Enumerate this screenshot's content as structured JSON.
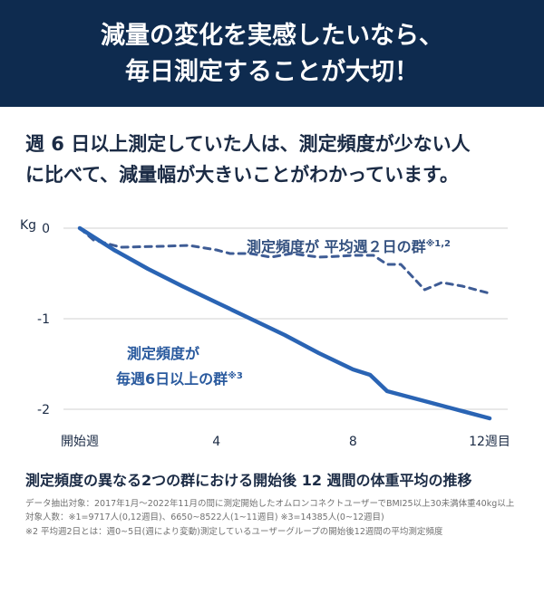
{
  "header": {
    "line1": "減量の変化を実感したいなら、",
    "line2": "毎日測定することが大切！"
  },
  "subhead": {
    "line1": "週 6 日以上測定していた人は、測定頻度が少ない人",
    "line2": "に比べて、減量幅が大きいことがわかっています。"
  },
  "chart_data": {
    "type": "line",
    "ylabel": "Kg",
    "ylim": [
      -2.1,
      0
    ],
    "yticks": [
      0,
      -1,
      -2
    ],
    "xlim": [
      0,
      12
    ],
    "xticks": [
      {
        "value": 0,
        "label": "開始週"
      },
      {
        "value": 4,
        "label": "4"
      },
      {
        "value": 8,
        "label": "8"
      },
      {
        "value": 12,
        "label": "12週目"
      }
    ],
    "grid": true,
    "series": [
      {
        "name": "測定頻度が 平均週２日の群",
        "name_sup": "※1,2",
        "style": "dashed",
        "color": "#3e5c95",
        "x": [
          0,
          0.4,
          1.2,
          2.4,
          3.2,
          4.0,
          4.4,
          5.0,
          5.6,
          6.2,
          7.0,
          7.6,
          8.0,
          8.6,
          9.0,
          9.4,
          10.1,
          10.6,
          11.2,
          12.0
        ],
        "y": [
          0,
          -0.13,
          -0.21,
          -0.2,
          -0.19,
          -0.24,
          -0.28,
          -0.28,
          -0.32,
          -0.28,
          -0.32,
          -0.31,
          -0.3,
          -0.3,
          -0.4,
          -0.4,
          -0.68,
          -0.6,
          -0.64,
          -0.72
        ]
      },
      {
        "name_line1": "測定頻度が",
        "name_line2": "毎週6日以上の群",
        "name_sup": "※3",
        "style": "solid",
        "color": "#2a64b4",
        "x": [
          0,
          1,
          2,
          3,
          4,
          5,
          6,
          7,
          8,
          8.5,
          9,
          10,
          11,
          12
        ],
        "y": [
          0,
          -0.24,
          -0.45,
          -0.64,
          -0.82,
          -1.0,
          -1.18,
          -1.38,
          -1.56,
          -1.62,
          -1.8,
          -1.9,
          -2.0,
          -2.1
        ]
      }
    ]
  },
  "caption": {
    "title": "測定頻度の異なる2つの群における開始後 12 週間の体重平均の推移",
    "note1": "データ抽出対象：2017年1月～2022年11月の間に測定開始したオムロンコネクトユーザーでBMI25以上30未満体重40kg以上",
    "note2": "対象人数：※1=9717人(0,12週目)、6650~8522人(1~11週目) ※3=14385人(0~12週目)",
    "note3": "※2 平均週2日とは：週0~5日(週により変動)測定しているユーザーグループの開始後12週間の平均測定頻度"
  }
}
